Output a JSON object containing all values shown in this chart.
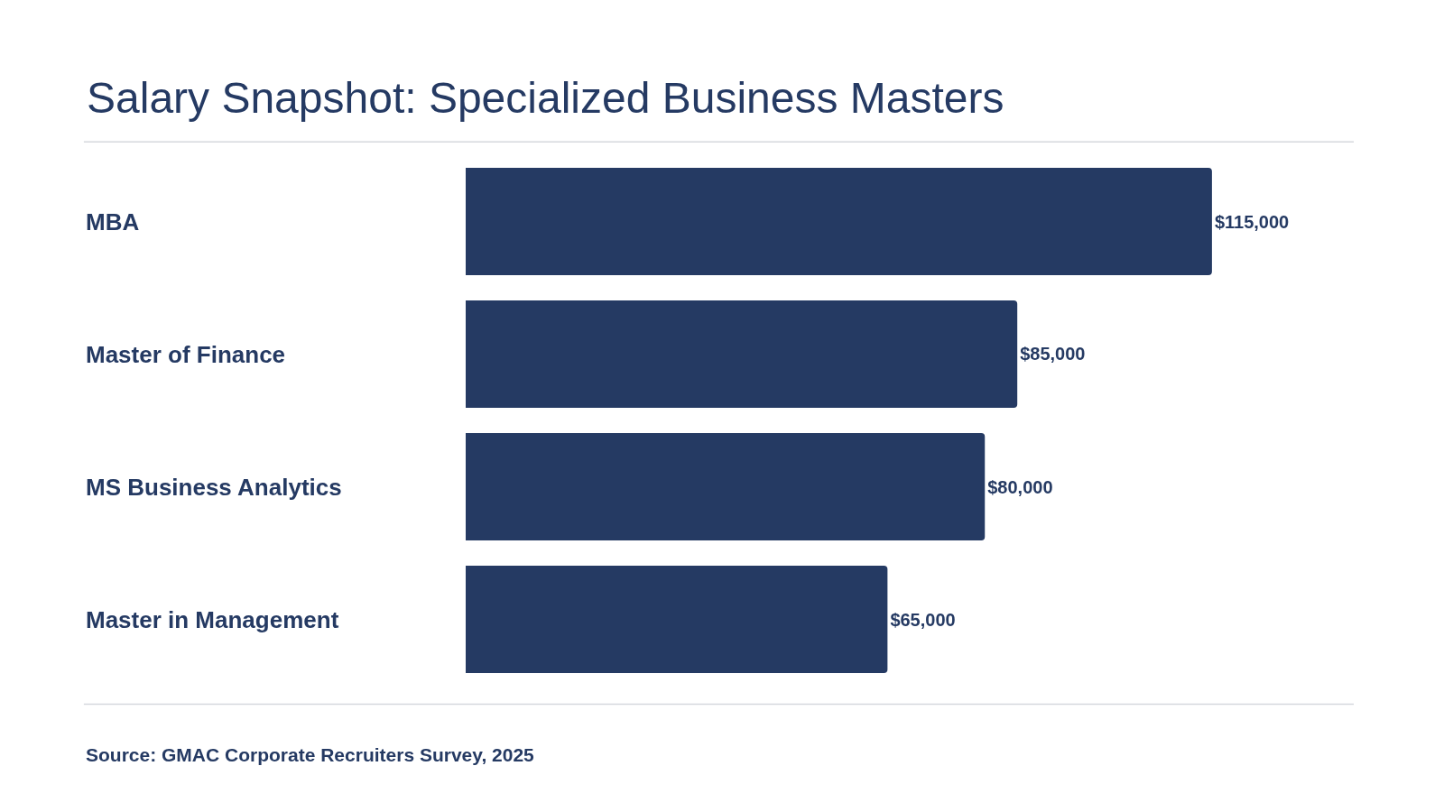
{
  "chart_data": {
    "type": "bar",
    "orientation": "horizontal",
    "title": "Salary Snapshot: Specialized Business Masters",
    "categories": [
      "MBA",
      "Master of Finance",
      "MS Business Analytics",
      "Master in Management"
    ],
    "values": [
      115000,
      85000,
      80000,
      65000
    ],
    "value_labels": [
      "$115,000",
      "$85,000",
      "$80,000",
      "$65,000"
    ],
    "color": "#253a63",
    "annotations": [
      "Source: GMAC Corporate Recruiters Survey, 2025"
    ]
  }
}
